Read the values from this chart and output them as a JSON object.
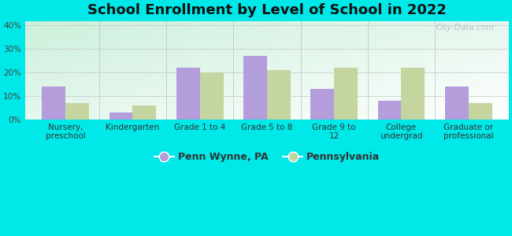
{
  "title": "School Enrollment by Level of School in 2022",
  "categories": [
    "Nursery,\npreschool",
    "Kindergarten",
    "Grade 1 to 4",
    "Grade 5 to 8",
    "Grade 9 to\n12",
    "College\nundergrad",
    "Graduate or\nprofessional"
  ],
  "penn_wynne": [
    14,
    3,
    22,
    27,
    13,
    8,
    14
  ],
  "pennsylvania": [
    7,
    6,
    20,
    21,
    22,
    22,
    7
  ],
  "penn_wynne_color": "#b39ddb",
  "pennsylvania_color": "#c5d5a0",
  "background_color": "#00e8e8",
  "title_fontsize": 13,
  "tick_fontsize": 7.5,
  "legend_fontsize": 9,
  "ylim": [
    0,
    42
  ],
  "yticks": [
    0,
    10,
    20,
    30,
    40
  ],
  "ytick_labels": [
    "0%",
    "10%",
    "20%",
    "30%",
    "40%"
  ],
  "bar_width": 0.35,
  "watermark": "City-Data.com"
}
